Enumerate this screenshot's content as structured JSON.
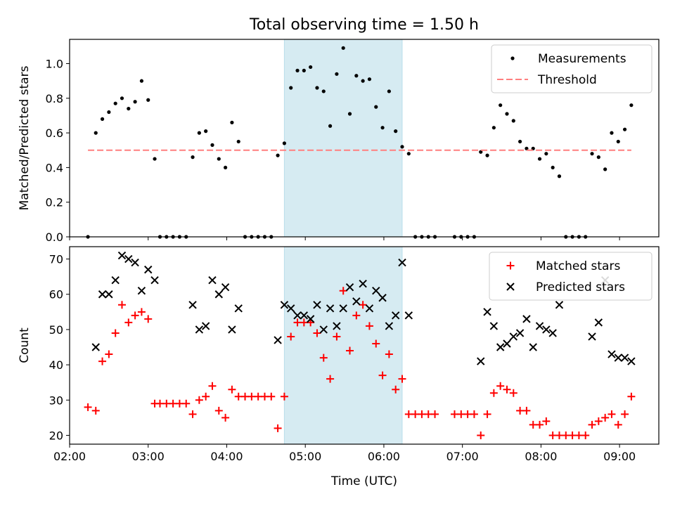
{
  "figure": {
    "title": "Total observing time = 1.50 h",
    "xlabel": "Time (UTC)",
    "x_ticks": [
      "02:00",
      "03:00",
      "04:00",
      "05:00",
      "06:00",
      "07:00",
      "08:00",
      "09:00"
    ]
  },
  "chart_data": [
    {
      "type": "scatter",
      "ylabel": "Matched/Predicted stars",
      "xlim": [
        "02:00",
        "09:30"
      ],
      "ylim": [
        0,
        1.14
      ],
      "y_ticks": [
        "0.0",
        "0.2",
        "0.4",
        "0.6",
        "0.8",
        "1.0"
      ],
      "highlight_span": {
        "from": "04:44",
        "to": "06:14",
        "color": "#add8e6"
      },
      "legend": {
        "placement": "top-right"
      },
      "series": [
        {
          "name": "Measurements",
          "marker": "dot",
          "color": "#000000",
          "points": [
            [
              "02:14",
              0.0
            ],
            [
              "02:20",
              0.6
            ],
            [
              "02:25",
              0.68
            ],
            [
              "02:30",
              0.72
            ],
            [
              "02:35",
              0.77
            ],
            [
              "02:40",
              0.8
            ],
            [
              "02:45",
              0.74
            ],
            [
              "02:50",
              0.78
            ],
            [
              "02:55",
              0.9
            ],
            [
              "03:00",
              0.79
            ],
            [
              "03:05",
              0.45
            ],
            [
              "03:09",
              0.0
            ],
            [
              "03:14",
              0.0
            ],
            [
              "03:19",
              0.0
            ],
            [
              "03:24",
              0.0
            ],
            [
              "03:29",
              0.0
            ],
            [
              "03:34",
              0.46
            ],
            [
              "03:39",
              0.6
            ],
            [
              "03:44",
              0.61
            ],
            [
              "03:49",
              0.53
            ],
            [
              "03:54",
              0.45
            ],
            [
              "03:59",
              0.4
            ],
            [
              "04:04",
              0.66
            ],
            [
              "04:09",
              0.55
            ],
            [
              "04:14",
              0.0
            ],
            [
              "04:19",
              0.0
            ],
            [
              "04:24",
              0.0
            ],
            [
              "04:29",
              0.0
            ],
            [
              "04:34",
              0.0
            ],
            [
              "04:39",
              0.47
            ],
            [
              "04:44",
              0.54
            ],
            [
              "04:49",
              0.86
            ],
            [
              "04:54",
              0.96
            ],
            [
              "04:59",
              0.96
            ],
            [
              "05:04",
              0.98
            ],
            [
              "05:09",
              0.86
            ],
            [
              "05:14",
              0.84
            ],
            [
              "05:19",
              0.64
            ],
            [
              "05:24",
              0.94
            ],
            [
              "05:29",
              1.09
            ],
            [
              "05:34",
              0.71
            ],
            [
              "05:39",
              0.93
            ],
            [
              "05:44",
              0.9
            ],
            [
              "05:49",
              0.91
            ],
            [
              "05:54",
              0.75
            ],
            [
              "05:59",
              0.63
            ],
            [
              "06:04",
              0.84
            ],
            [
              "06:09",
              0.61
            ],
            [
              "06:14",
              0.52
            ],
            [
              "06:19",
              0.48
            ],
            [
              "06:24",
              0.0
            ],
            [
              "06:29",
              0.0
            ],
            [
              "06:34",
              0.0
            ],
            [
              "06:39",
              0.0
            ],
            [
              "06:54",
              0.0
            ],
            [
              "06:59",
              0.0
            ],
            [
              "07:04",
              0.0
            ],
            [
              "07:09",
              0.0
            ],
            [
              "07:14",
              0.49
            ],
            [
              "07:19",
              0.47
            ],
            [
              "07:24",
              0.63
            ],
            [
              "07:29",
              0.76
            ],
            [
              "07:34",
              0.71
            ],
            [
              "07:39",
              0.67
            ],
            [
              "07:44",
              0.55
            ],
            [
              "07:49",
              0.51
            ],
            [
              "07:54",
              0.51
            ],
            [
              "07:59",
              0.45
            ],
            [
              "08:04",
              0.48
            ],
            [
              "08:09",
              0.4
            ],
            [
              "08:14",
              0.35
            ],
            [
              "08:19",
              0.0
            ],
            [
              "08:24",
              0.0
            ],
            [
              "08:29",
              0.0
            ],
            [
              "08:34",
              0.0
            ],
            [
              "08:39",
              0.48
            ],
            [
              "08:44",
              0.46
            ],
            [
              "08:49",
              0.39
            ],
            [
              "08:54",
              0.6
            ],
            [
              "08:59",
              0.55
            ],
            [
              "09:04",
              0.62
            ],
            [
              "09:09",
              0.76
            ]
          ]
        },
        {
          "name": "Threshold",
          "marker": "dashed-line",
          "color": "#ff7f7f",
          "points": [
            [
              "02:14",
              0.5
            ],
            [
              "09:09",
              0.5
            ]
          ]
        }
      ]
    },
    {
      "type": "scatter",
      "ylabel": "Count",
      "xlim": [
        "02:00",
        "09:30"
      ],
      "ylim": [
        17.5,
        73.5
      ],
      "y_ticks": [
        "20",
        "30",
        "40",
        "50",
        "60",
        "70"
      ],
      "highlight_span": {
        "from": "04:44",
        "to": "06:14",
        "color": "#add8e6"
      },
      "legend": {
        "placement": "top-right"
      },
      "series": [
        {
          "name": "Matched stars",
          "marker": "plus",
          "color": "#ff0000",
          "points": [
            [
              "02:14",
              28
            ],
            [
              "02:20",
              27
            ],
            [
              "02:25",
              41
            ],
            [
              "02:30",
              43
            ],
            [
              "02:35",
              49
            ],
            [
              "02:40",
              57
            ],
            [
              "02:45",
              52
            ],
            [
              "02:50",
              54
            ],
            [
              "02:55",
              55
            ],
            [
              "03:00",
              53
            ],
            [
              "03:05",
              29
            ],
            [
              "03:09",
              29
            ],
            [
              "03:14",
              29
            ],
            [
              "03:19",
              29
            ],
            [
              "03:24",
              29
            ],
            [
              "03:29",
              29
            ],
            [
              "03:34",
              26
            ],
            [
              "03:39",
              30
            ],
            [
              "03:44",
              31
            ],
            [
              "03:49",
              34
            ],
            [
              "03:54",
              27
            ],
            [
              "03:59",
              25
            ],
            [
              "04:04",
              33
            ],
            [
              "04:09",
              31
            ],
            [
              "04:14",
              31
            ],
            [
              "04:19",
              31
            ],
            [
              "04:24",
              31
            ],
            [
              "04:29",
              31
            ],
            [
              "04:34",
              31
            ],
            [
              "04:39",
              22
            ],
            [
              "04:44",
              31
            ],
            [
              "04:49",
              48
            ],
            [
              "04:54",
              52
            ],
            [
              "04:59",
              52
            ],
            [
              "05:04",
              52
            ],
            [
              "05:09",
              49
            ],
            [
              "05:14",
              42
            ],
            [
              "05:19",
              36
            ],
            [
              "05:24",
              48
            ],
            [
              "05:29",
              61
            ],
            [
              "05:34",
              44
            ],
            [
              "05:39",
              54
            ],
            [
              "05:44",
              57
            ],
            [
              "05:49",
              51
            ],
            [
              "05:54",
              46
            ],
            [
              "05:59",
              37
            ],
            [
              "06:04",
              43
            ],
            [
              "06:09",
              33
            ],
            [
              "06:14",
              36
            ],
            [
              "06:19",
              26
            ],
            [
              "06:24",
              26
            ],
            [
              "06:29",
              26
            ],
            [
              "06:34",
              26
            ],
            [
              "06:39",
              26
            ],
            [
              "06:54",
              26
            ],
            [
              "06:59",
              26
            ],
            [
              "07:04",
              26
            ],
            [
              "07:09",
              26
            ],
            [
              "07:14",
              20
            ],
            [
              "07:19",
              26
            ],
            [
              "07:24",
              32
            ],
            [
              "07:29",
              34
            ],
            [
              "07:34",
              33
            ],
            [
              "07:39",
              32
            ],
            [
              "07:44",
              27
            ],
            [
              "07:49",
              27
            ],
            [
              "07:54",
              23
            ],
            [
              "07:59",
              23
            ],
            [
              "08:04",
              24
            ],
            [
              "08:09",
              20
            ],
            [
              "08:14",
              20
            ],
            [
              "08:19",
              20
            ],
            [
              "08:24",
              20
            ],
            [
              "08:29",
              20
            ],
            [
              "08:34",
              20
            ],
            [
              "08:39",
              23
            ],
            [
              "08:44",
              24
            ],
            [
              "08:49",
              25
            ],
            [
              "08:54",
              26
            ],
            [
              "08:59",
              23
            ],
            [
              "09:04",
              26
            ],
            [
              "09:09",
              31
            ]
          ]
        },
        {
          "name": "Predicted stars",
          "marker": "x",
          "color": "#000000",
          "points": [
            [
              "02:20",
              45
            ],
            [
              "02:25",
              60
            ],
            [
              "02:30",
              60
            ],
            [
              "02:35",
              64
            ],
            [
              "02:40",
              71
            ],
            [
              "02:45",
              70
            ],
            [
              "02:50",
              69
            ],
            [
              "02:55",
              61
            ],
            [
              "03:00",
              67
            ],
            [
              "03:05",
              64
            ],
            [
              "03:34",
              57
            ],
            [
              "03:39",
              50
            ],
            [
              "03:44",
              51
            ],
            [
              "03:49",
              64
            ],
            [
              "03:54",
              60
            ],
            [
              "03:59",
              62
            ],
            [
              "04:04",
              50
            ],
            [
              "04:09",
              56
            ],
            [
              "04:39",
              47
            ],
            [
              "04:44",
              57
            ],
            [
              "04:49",
              56
            ],
            [
              "04:54",
              54
            ],
            [
              "04:59",
              54
            ],
            [
              "05:04",
              53
            ],
            [
              "05:09",
              57
            ],
            [
              "05:14",
              50
            ],
            [
              "05:19",
              56
            ],
            [
              "05:24",
              51
            ],
            [
              "05:29",
              56
            ],
            [
              "05:34",
              62
            ],
            [
              "05:39",
              58
            ],
            [
              "05:44",
              63
            ],
            [
              "05:49",
              56
            ],
            [
              "05:54",
              61
            ],
            [
              "05:59",
              59
            ],
            [
              "06:04",
              51
            ],
            [
              "06:09",
              54
            ],
            [
              "06:14",
              69
            ],
            [
              "06:19",
              54
            ],
            [
              "07:14",
              41
            ],
            [
              "07:19",
              55
            ],
            [
              "07:24",
              51
            ],
            [
              "07:29",
              45
            ],
            [
              "07:34",
              46
            ],
            [
              "07:39",
              48
            ],
            [
              "07:44",
              49
            ],
            [
              "07:49",
              53
            ],
            [
              "07:54",
              45
            ],
            [
              "07:59",
              51
            ],
            [
              "08:04",
              50
            ],
            [
              "08:09",
              49
            ],
            [
              "08:14",
              57
            ],
            [
              "08:39",
              48
            ],
            [
              "08:44",
              52
            ],
            [
              "08:49",
              64
            ],
            [
              "08:54",
              43
            ],
            [
              "08:59",
              42
            ],
            [
              "09:04",
              42
            ],
            [
              "09:09",
              41
            ]
          ]
        }
      ]
    }
  ]
}
